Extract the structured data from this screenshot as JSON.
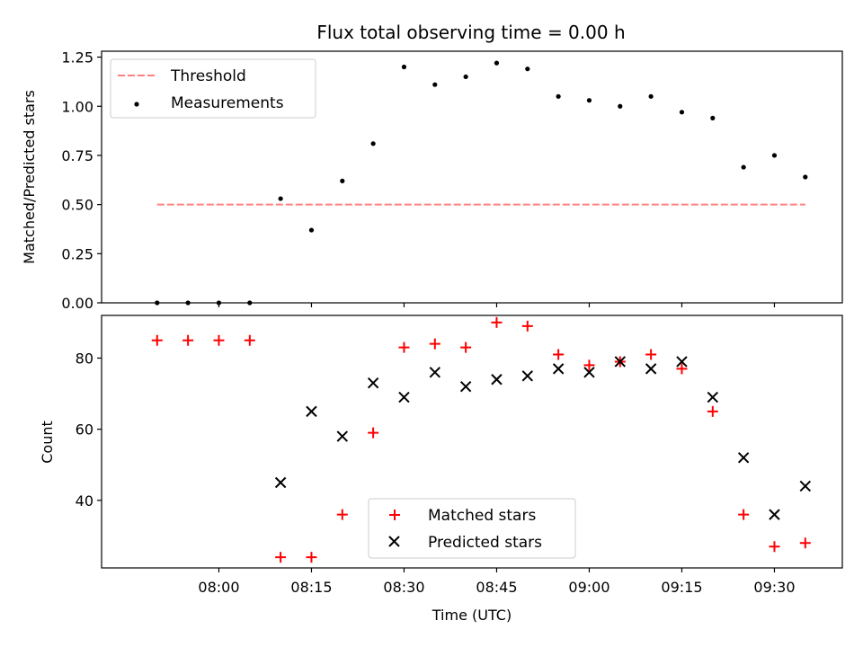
{
  "chart_data": [
    {
      "type": "scatter",
      "title": "Flux total observing time = 0.00 h",
      "xlabel": "",
      "ylabel": "Matched/Predicted stars",
      "ylim": [
        0,
        1.28
      ],
      "yticks": [
        "0.00",
        "0.25",
        "0.50",
        "0.75",
        "1.00",
        "1.25"
      ],
      "legend": "upper-left",
      "threshold": {
        "name": "Threshold",
        "value": 0.5,
        "x_start": "07:50",
        "x_end": "09:35",
        "color": "#ff8080",
        "style": "dashed"
      },
      "series": [
        {
          "name": "Measurements",
          "marker": "dot",
          "color": "#000000",
          "x": [
            "07:50",
            "07:55",
            "08:00",
            "08:05",
            "08:10",
            "08:15",
            "08:20",
            "08:25",
            "08:30",
            "08:35",
            "08:40",
            "08:45",
            "08:50",
            "08:55",
            "09:00",
            "09:05",
            "09:10",
            "09:15",
            "09:20",
            "09:25",
            "09:30",
            "09:35"
          ],
          "values": [
            0.0,
            0.0,
            0.0,
            0.0,
            0.53,
            0.37,
            0.62,
            0.81,
            1.2,
            1.11,
            1.15,
            1.22,
            1.19,
            1.05,
            1.03,
            1.0,
            1.05,
            0.97,
            0.94,
            0.69,
            0.75,
            0.64
          ]
        }
      ]
    },
    {
      "type": "scatter",
      "title": "",
      "xlabel": "Time (UTC)",
      "ylabel": "Count",
      "ylim": [
        21,
        92
      ],
      "yticks": [
        "40",
        "60",
        "80"
      ],
      "xlim": [
        "07:41",
        "09:41"
      ],
      "xticks": [
        "08:00",
        "08:15",
        "08:30",
        "08:45",
        "09:00",
        "09:15",
        "09:30"
      ],
      "legend": "lower-center",
      "series": [
        {
          "name": "Matched stars",
          "marker": "plus",
          "color": "#ff0000",
          "x": [
            "07:50",
            "07:55",
            "08:00",
            "08:05",
            "08:10",
            "08:15",
            "08:20",
            "08:25",
            "08:30",
            "08:35",
            "08:40",
            "08:45",
            "08:50",
            "08:55",
            "09:00",
            "09:05",
            "09:10",
            "09:15",
            "09:20",
            "09:25",
            "09:30",
            "09:35"
          ],
          "values": [
            85,
            85,
            85,
            85,
            24,
            24,
            36,
            59,
            83,
            84,
            83,
            90,
            89,
            81,
            78,
            79,
            81,
            77,
            65,
            36,
            27,
            28
          ]
        },
        {
          "name": "Predicted stars",
          "marker": "x",
          "color": "#000000",
          "x": [
            "08:10",
            "08:15",
            "08:20",
            "08:25",
            "08:30",
            "08:35",
            "08:40",
            "08:45",
            "08:50",
            "08:55",
            "09:00",
            "09:05",
            "09:10",
            "09:15",
            "09:20",
            "09:25",
            "09:30",
            "09:35"
          ],
          "values": [
            45,
            65,
            58,
            73,
            69,
            76,
            72,
            74,
            75,
            77,
            76,
            79,
            77,
            79,
            69,
            52,
            36,
            44
          ]
        }
      ]
    }
  ]
}
